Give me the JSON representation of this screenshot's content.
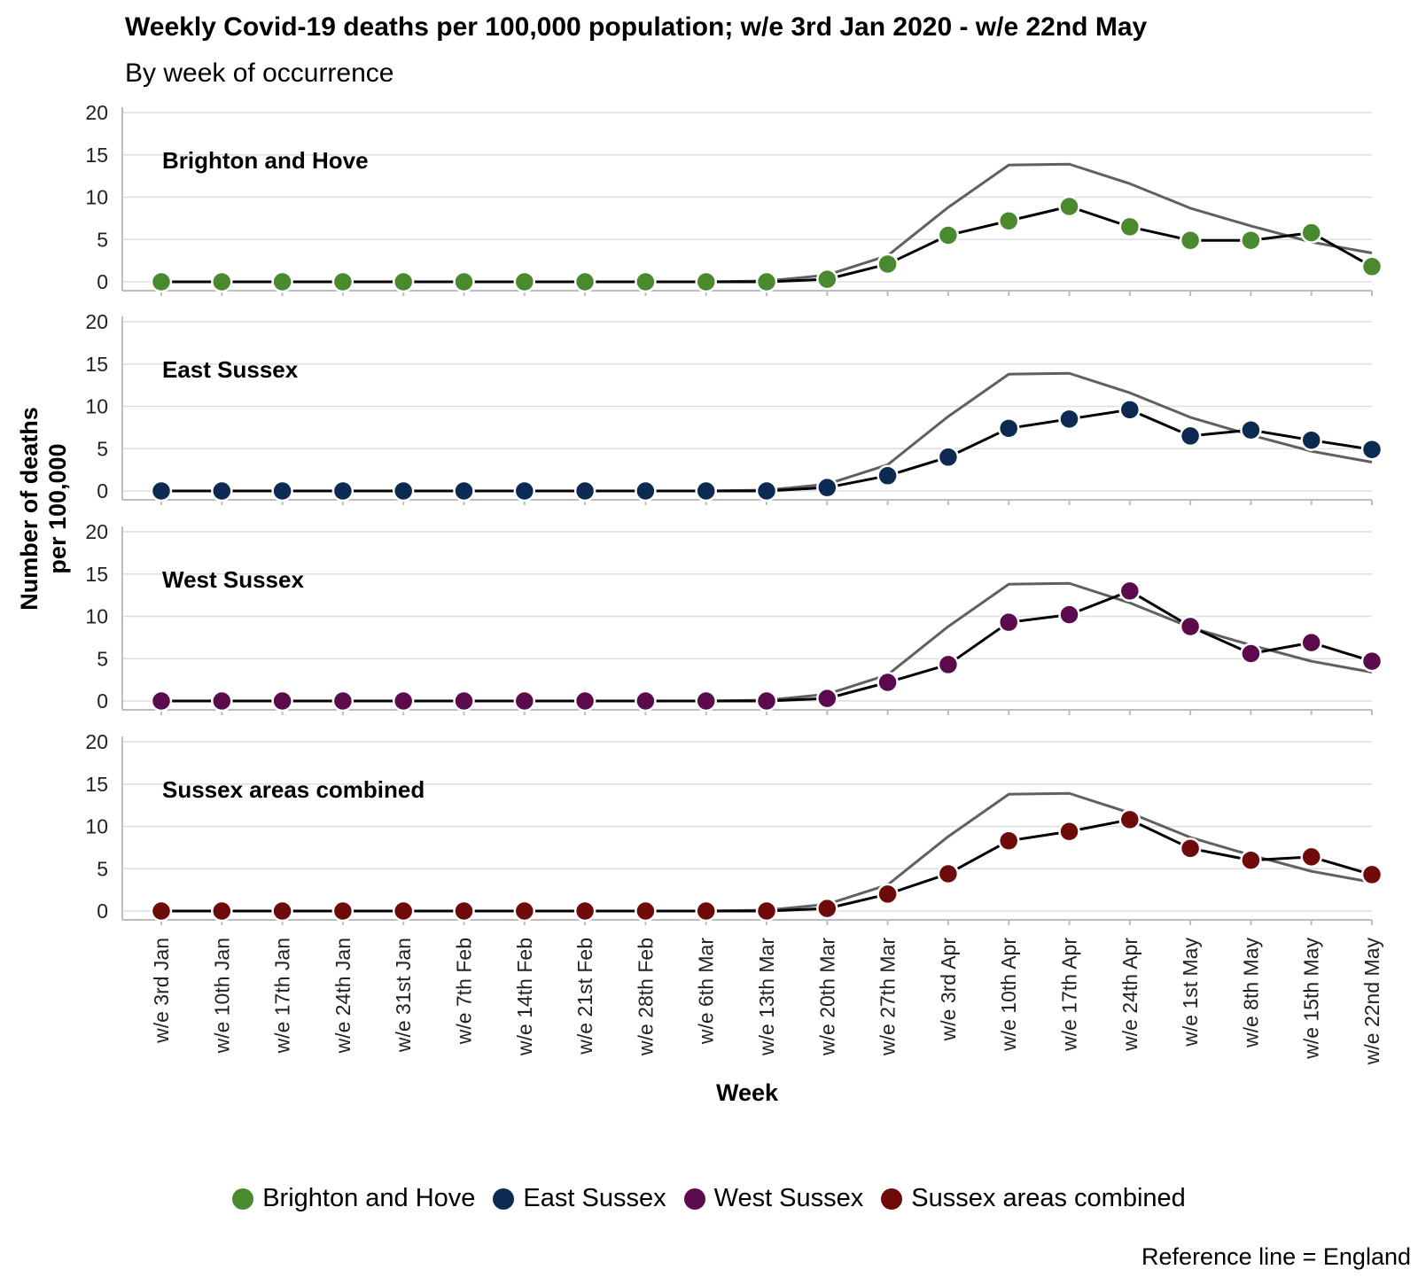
{
  "title": "Weekly Covid-19 deaths per 100,000 population; w/e 3rd Jan 2020 - w/e 22nd May",
  "subtitle": "By week of occurrence",
  "caption": "Reference line = England",
  "chart_data": {
    "type": "line",
    "title": "Weekly Covid-19 deaths per 100,000 population; w/e 3rd Jan 2020 - w/e 22nd May",
    "subtitle": "By week of occurrence",
    "xlabel": "Week",
    "ylabel": "Number of deaths per 100,000",
    "ylabel_lines": [
      "Number of deaths",
      "per 100,000"
    ],
    "ylim": [
      0,
      20
    ],
    "yticks": [
      0,
      5,
      10,
      15,
      20
    ],
    "grid": true,
    "legend_position": "bottom",
    "categories": [
      "w/e 3rd Jan",
      "w/e 10th Jan",
      "w/e 17th Jan",
      "w/e 24th Jan",
      "w/e 31st Jan",
      "w/e 7th Feb",
      "w/e 14th Feb",
      "w/e 21st Feb",
      "w/e 28th Feb",
      "w/e 6th Mar",
      "w/e 13th Mar",
      "w/e 20th Mar",
      "w/e 27th Mar",
      "w/e 3rd Apr",
      "w/e 10th Apr",
      "w/e 17th Apr",
      "w/e 24th Apr",
      "w/e 1st May",
      "w/e 8th May",
      "w/e 15th May",
      "w/e 22nd May"
    ],
    "reference": {
      "name": "England",
      "color": "#606060",
      "values": [
        0,
        0,
        0,
        0,
        0,
        0,
        0,
        0,
        0,
        0,
        0.1,
        0.8,
        3.1,
        8.8,
        13.8,
        13.9,
        11.6,
        8.7,
        6.6,
        4.7,
        3.4
      ]
    },
    "series": [
      {
        "name": "Brighton and Hove",
        "color": "#4a8a2e",
        "values": [
          0,
          0,
          0,
          0,
          0,
          0,
          0,
          0,
          0,
          0,
          0,
          0.3,
          2.1,
          5.5,
          7.2,
          8.9,
          6.5,
          4.9,
          4.9,
          5.8,
          1.8
        ]
      },
      {
        "name": "East Sussex",
        "color": "#0d2a52",
        "values": [
          0,
          0,
          0,
          0,
          0,
          0,
          0,
          0,
          0,
          0,
          0,
          0.4,
          1.8,
          4.0,
          7.4,
          8.5,
          9.6,
          6.5,
          7.2,
          6.0,
          4.9
        ]
      },
      {
        "name": "West Sussex",
        "color": "#5c0a4e",
        "values": [
          0,
          0,
          0,
          0,
          0,
          0,
          0,
          0,
          0,
          0,
          0,
          0.3,
          2.2,
          4.3,
          9.3,
          10.2,
          13.0,
          8.8,
          5.6,
          6.9,
          4.7
        ]
      },
      {
        "name": "Sussex areas combined",
        "color": "#6e0a0a",
        "values": [
          0,
          0,
          0,
          0,
          0,
          0,
          0,
          0,
          0,
          0,
          0,
          0.3,
          2.0,
          4.4,
          8.3,
          9.4,
          10.8,
          7.4,
          6.0,
          6.4,
          4.3
        ]
      }
    ]
  }
}
